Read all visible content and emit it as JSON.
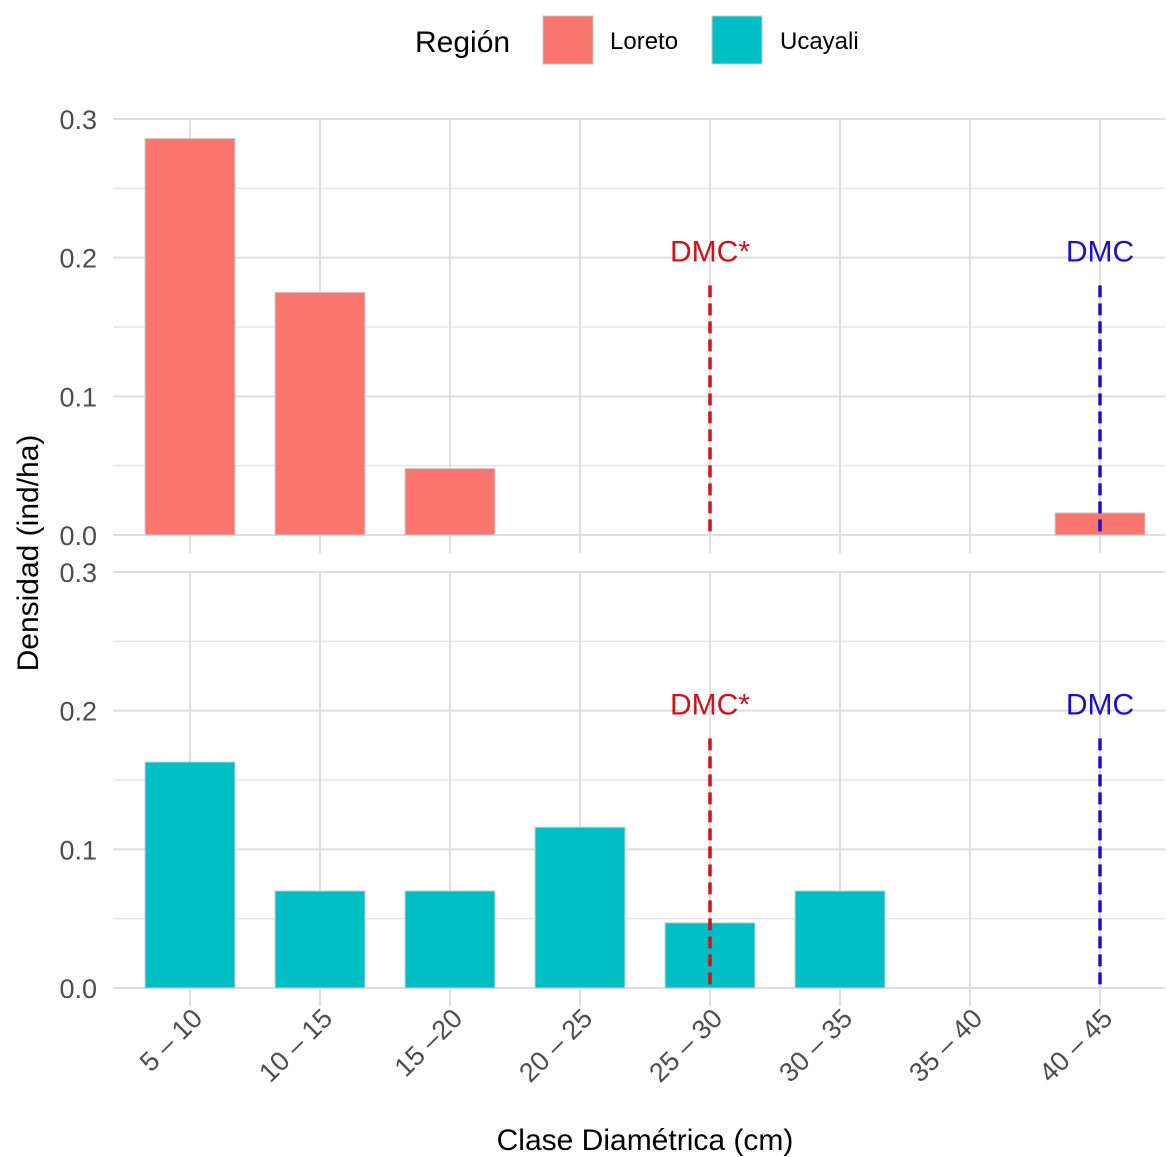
{
  "chart_data": {
    "type": "bar",
    "xlabel": "Clase Diamétrica (cm)",
    "ylabel": "Densidad (ind/ha)",
    "ylim": [
      0,
      0.3
    ],
    "yticks": [
      "0.0",
      "0.1",
      "0.2",
      "0.3"
    ],
    "grid": true,
    "legend": {
      "title": "Región",
      "position": "top",
      "entries": [
        {
          "label": "Loreto",
          "color": "#F8766D"
        },
        {
          "label": "Ucayali",
          "color": "#00BFC4"
        }
      ]
    },
    "categories": [
      "5 – 10",
      "10 – 15",
      "15 –20",
      "20 – 25",
      "25 – 30",
      "30 – 35",
      "35 – 40",
      "40 – 45"
    ],
    "series": [
      {
        "name": "Loreto",
        "color": "#F8766D",
        "values": [
          0.286,
          0.175,
          0.048,
          0,
          0,
          0,
          0,
          0.016
        ]
      },
      {
        "name": "Ucayali",
        "color": "#00BFC4",
        "values": [
          0.163,
          0.07,
          0.07,
          0.116,
          0.047,
          0.07,
          0,
          0
        ]
      }
    ],
    "annotations": [
      {
        "label": "DMC*",
        "category": "25 – 30",
        "color": "#d0121b",
        "y_top": 0.18
      },
      {
        "label": "DMC",
        "category": "40 – 45",
        "color": "#1a12c8",
        "y_top": 0.18
      }
    ]
  }
}
